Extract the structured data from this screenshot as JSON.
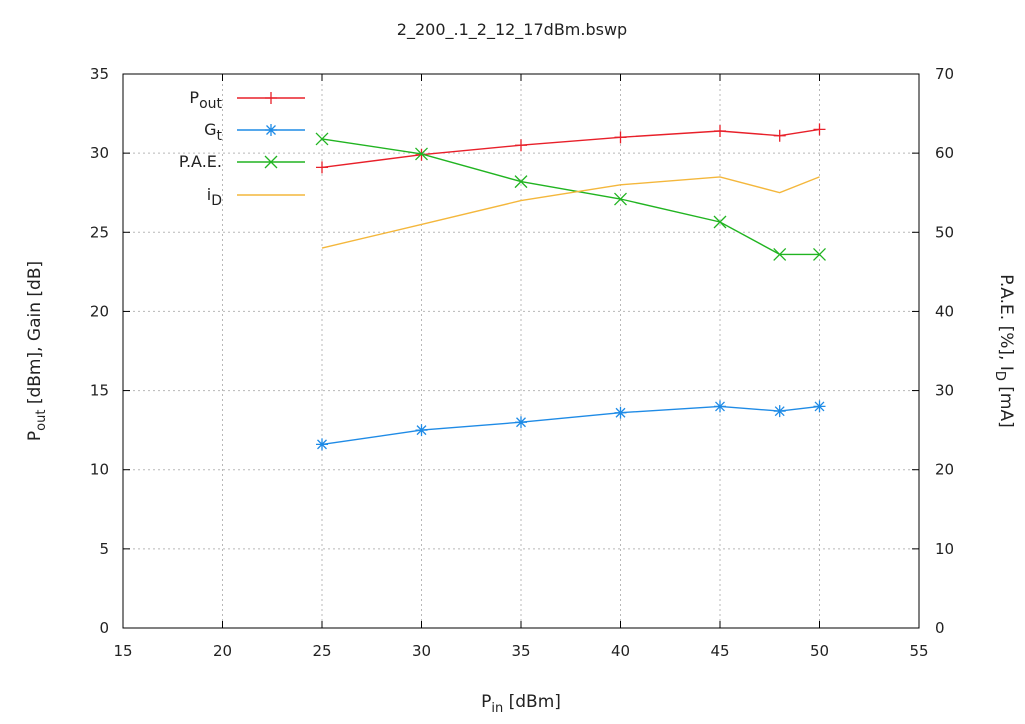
{
  "chart_data": {
    "type": "line",
    "title": "2_200_.1_2_12_17dBm.bswp",
    "xlabel": {
      "main": "P",
      "sub": "in",
      "rest": " [dBm]"
    },
    "ylabel_left": {
      "main": "P",
      "sub": "out",
      "rest": " [dBm], Gain [dB]"
    },
    "ylabel_right": {
      "main": "P.A.E. [%], I",
      "sub": "D",
      "rest": " [mA]"
    },
    "xlim": [
      15,
      55
    ],
    "ylim_left": [
      0,
      35
    ],
    "ylim_right": [
      0,
      70
    ],
    "xticks": [
      "15",
      "20",
      "25",
      "30",
      "35",
      "40",
      "45",
      "50",
      "55"
    ],
    "yticks_left": [
      "0",
      "5",
      "10",
      "15",
      "20",
      "25",
      "30",
      "35"
    ],
    "yticks_right": [
      "0",
      "10",
      "20",
      "30",
      "40",
      "50",
      "60",
      "70"
    ],
    "grid": true,
    "legend_position": "top-left",
    "series": [
      {
        "name": "P",
        "name_sub": "out",
        "axis": "left",
        "color": "#e8202a",
        "marker": "plus",
        "x": [
          25,
          30,
          35,
          40,
          45,
          48,
          50
        ],
        "y": [
          29.1,
          29.9,
          30.5,
          31.0,
          31.4,
          31.1,
          31.5
        ]
      },
      {
        "name": "G",
        "name_sub": "t",
        "axis": "left",
        "color": "#1f8be6",
        "marker": "star",
        "x": [
          25,
          30,
          35,
          40,
          45,
          48,
          50
        ],
        "y": [
          11.6,
          12.5,
          13.0,
          13.6,
          14.0,
          13.7,
          14.0
        ]
      },
      {
        "name": "P.A.E.",
        "name_sub": "",
        "axis": "right",
        "color": "#21b421",
        "marker": "x",
        "x": [
          25,
          30,
          35,
          40,
          45,
          48,
          50
        ],
        "y": [
          61.8,
          59.9,
          56.4,
          54.2,
          51.3,
          47.2,
          47.2
        ]
      },
      {
        "name": "i",
        "name_sub": "D",
        "axis": "right",
        "color": "#f4b73c",
        "marker": "none",
        "x": [
          25,
          30,
          35,
          40,
          45,
          48,
          50
        ],
        "y": [
          48.0,
          51.0,
          54.0,
          56.0,
          57.0,
          55.0,
          57.0
        ]
      }
    ]
  }
}
